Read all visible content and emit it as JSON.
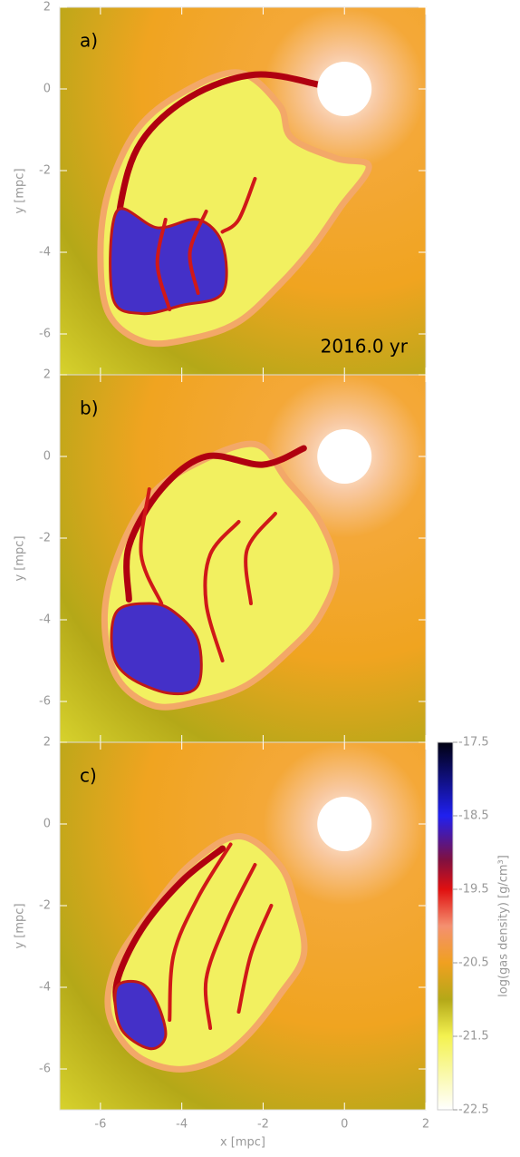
{
  "chart_data": [
    {
      "type": "image",
      "panel_label": "a)",
      "annotation": "2016.0 yr",
      "ylabel": "y [mpc]",
      "xlim": [
        -7,
        2
      ],
      "ylim": [
        -7,
        2
      ],
      "xticks": [
        -6,
        -4,
        -2,
        0,
        2
      ],
      "yticks": [
        -6,
        -4,
        -2,
        0,
        2
      ]
    },
    {
      "type": "image",
      "panel_label": "b)",
      "ylabel": "y [mpc]",
      "xlim": [
        -7,
        2
      ],
      "ylim": [
        -7,
        2
      ],
      "xticks": [
        -6,
        -4,
        -2,
        0,
        2
      ],
      "yticks": [
        -6,
        -4,
        -2,
        0,
        2
      ]
    },
    {
      "type": "image",
      "panel_label": "c)",
      "ylabel": "y [mpc]",
      "xlabel": "x [mpc]",
      "xlim": [
        -7,
        2
      ],
      "ylim": [
        -7,
        2
      ],
      "xticks": [
        -6,
        -4,
        -2,
        0,
        2
      ],
      "yticks": [
        -6,
        -4,
        -2,
        0,
        2
      ],
      "colorbar": {
        "label": "log(gas density) [g/cm³]",
        "lim": [
          -22.5,
          -17.5
        ],
        "ticks": [
          -17.5,
          -18.5,
          -19.5,
          -20.5,
          -21.5,
          -22.5
        ]
      }
    }
  ]
}
